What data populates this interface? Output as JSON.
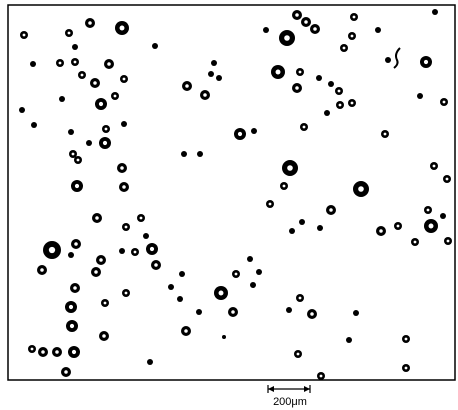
{
  "scale_bar": {
    "label": "200μm"
  }
}
